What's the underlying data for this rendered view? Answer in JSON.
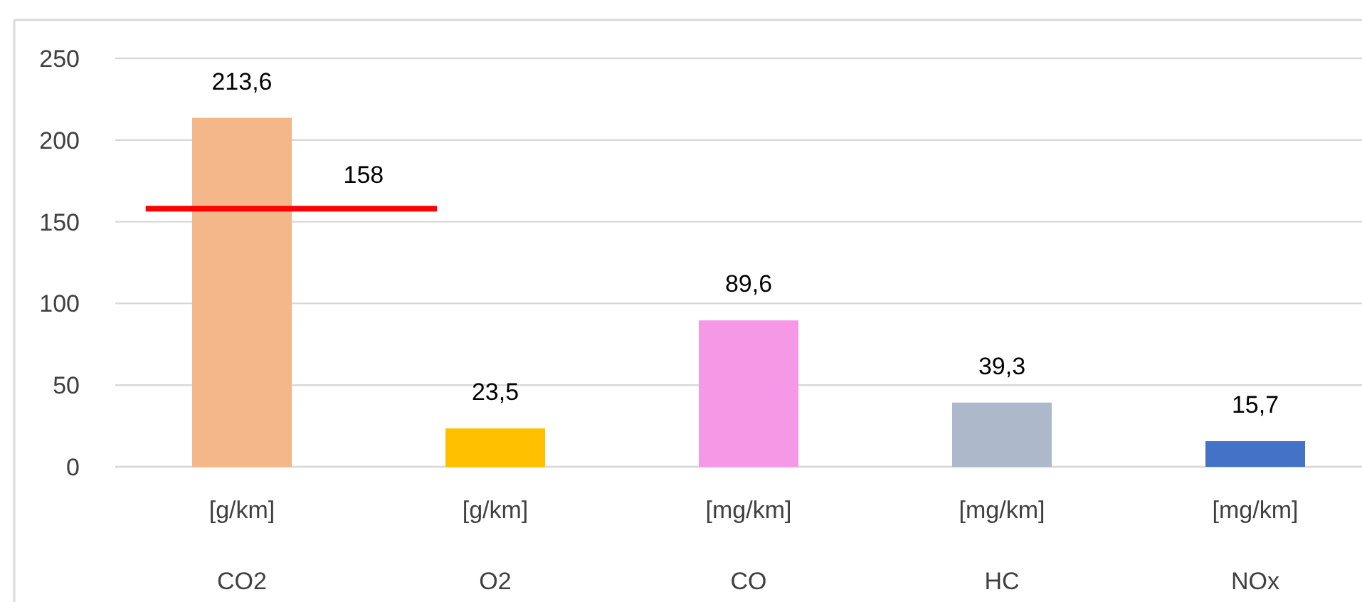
{
  "chart_data": {
    "type": "bar",
    "categories": [
      "[g/km]\nCO2",
      "[g/km]\nO2",
      "[mg/km]\nCO",
      "[mg/km]\nHC",
      "[mg/km]\nNOx"
    ],
    "values": [
      213.6,
      23.5,
      89.6,
      39.3,
      15.7
    ],
    "value_labels": [
      "213,6",
      "23,5",
      "89,6",
      "39,3",
      "15,7"
    ],
    "colors": [
      "#f4b78a",
      "#ffc000",
      "#f598e6",
      "#adb9ca",
      "#4472c4"
    ],
    "ylim": [
      0,
      250
    ],
    "yticks": [
      0,
      50,
      100,
      150,
      200,
      250
    ],
    "grid": "y",
    "ref_lines": [
      {
        "axis": "y",
        "value": 158,
        "label": "158",
        "color": "#ff0000"
      }
    ]
  }
}
